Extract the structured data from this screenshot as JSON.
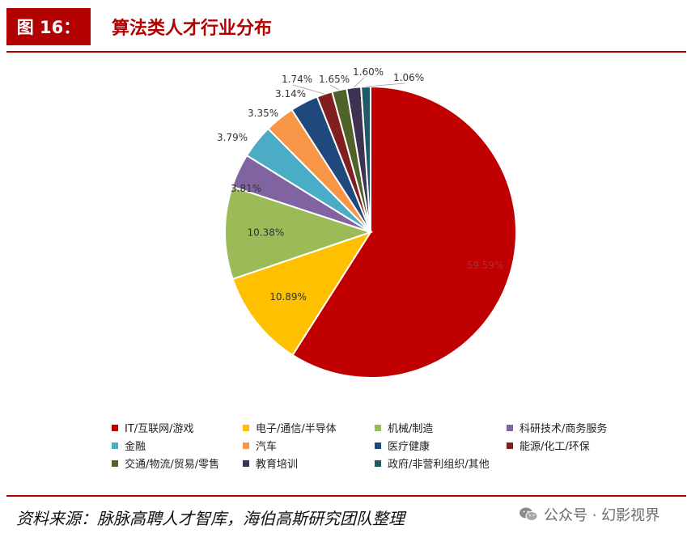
{
  "header": {
    "figure_label": "图 16：",
    "title": "算法类人才行业分布"
  },
  "source": "资料来源：脉脉高聘人才智库，海伯高斯研究团队整理",
  "watermark": {
    "text": "公众号 · 幻影视界",
    "icon": "wechat-icon"
  },
  "chart_data": {
    "type": "pie",
    "title": "",
    "legend_position": "bottom",
    "categories": [
      "IT/互联网/游戏",
      "电子/通信/半导体",
      "机械/制造",
      "科研技术/商务服务",
      "金融",
      "汽车",
      "医疗健康",
      "能源/化工/环保",
      "交通/物流/贸易/零售",
      "教育培训",
      "政府/非营利组织/其他"
    ],
    "values": [
      59.59,
      10.89,
      10.38,
      3.81,
      3.79,
      3.35,
      3.14,
      1.74,
      1.65,
      1.6,
      1.06
    ],
    "labels": [
      "59.59%",
      "10.89%",
      "10.38%",
      "3.81%",
      "3.79%",
      "3.35%",
      "3.14%",
      "1.74%",
      "1.65%",
      "1.60%",
      "1.06%"
    ],
    "colors": [
      "#c00000",
      "#ffc000",
      "#9bbb59",
      "#8064a2",
      "#4bacc6",
      "#f79646",
      "#1f497d",
      "#7f1f1f",
      "#4f6228",
      "#3f3151",
      "#215967"
    ]
  }
}
